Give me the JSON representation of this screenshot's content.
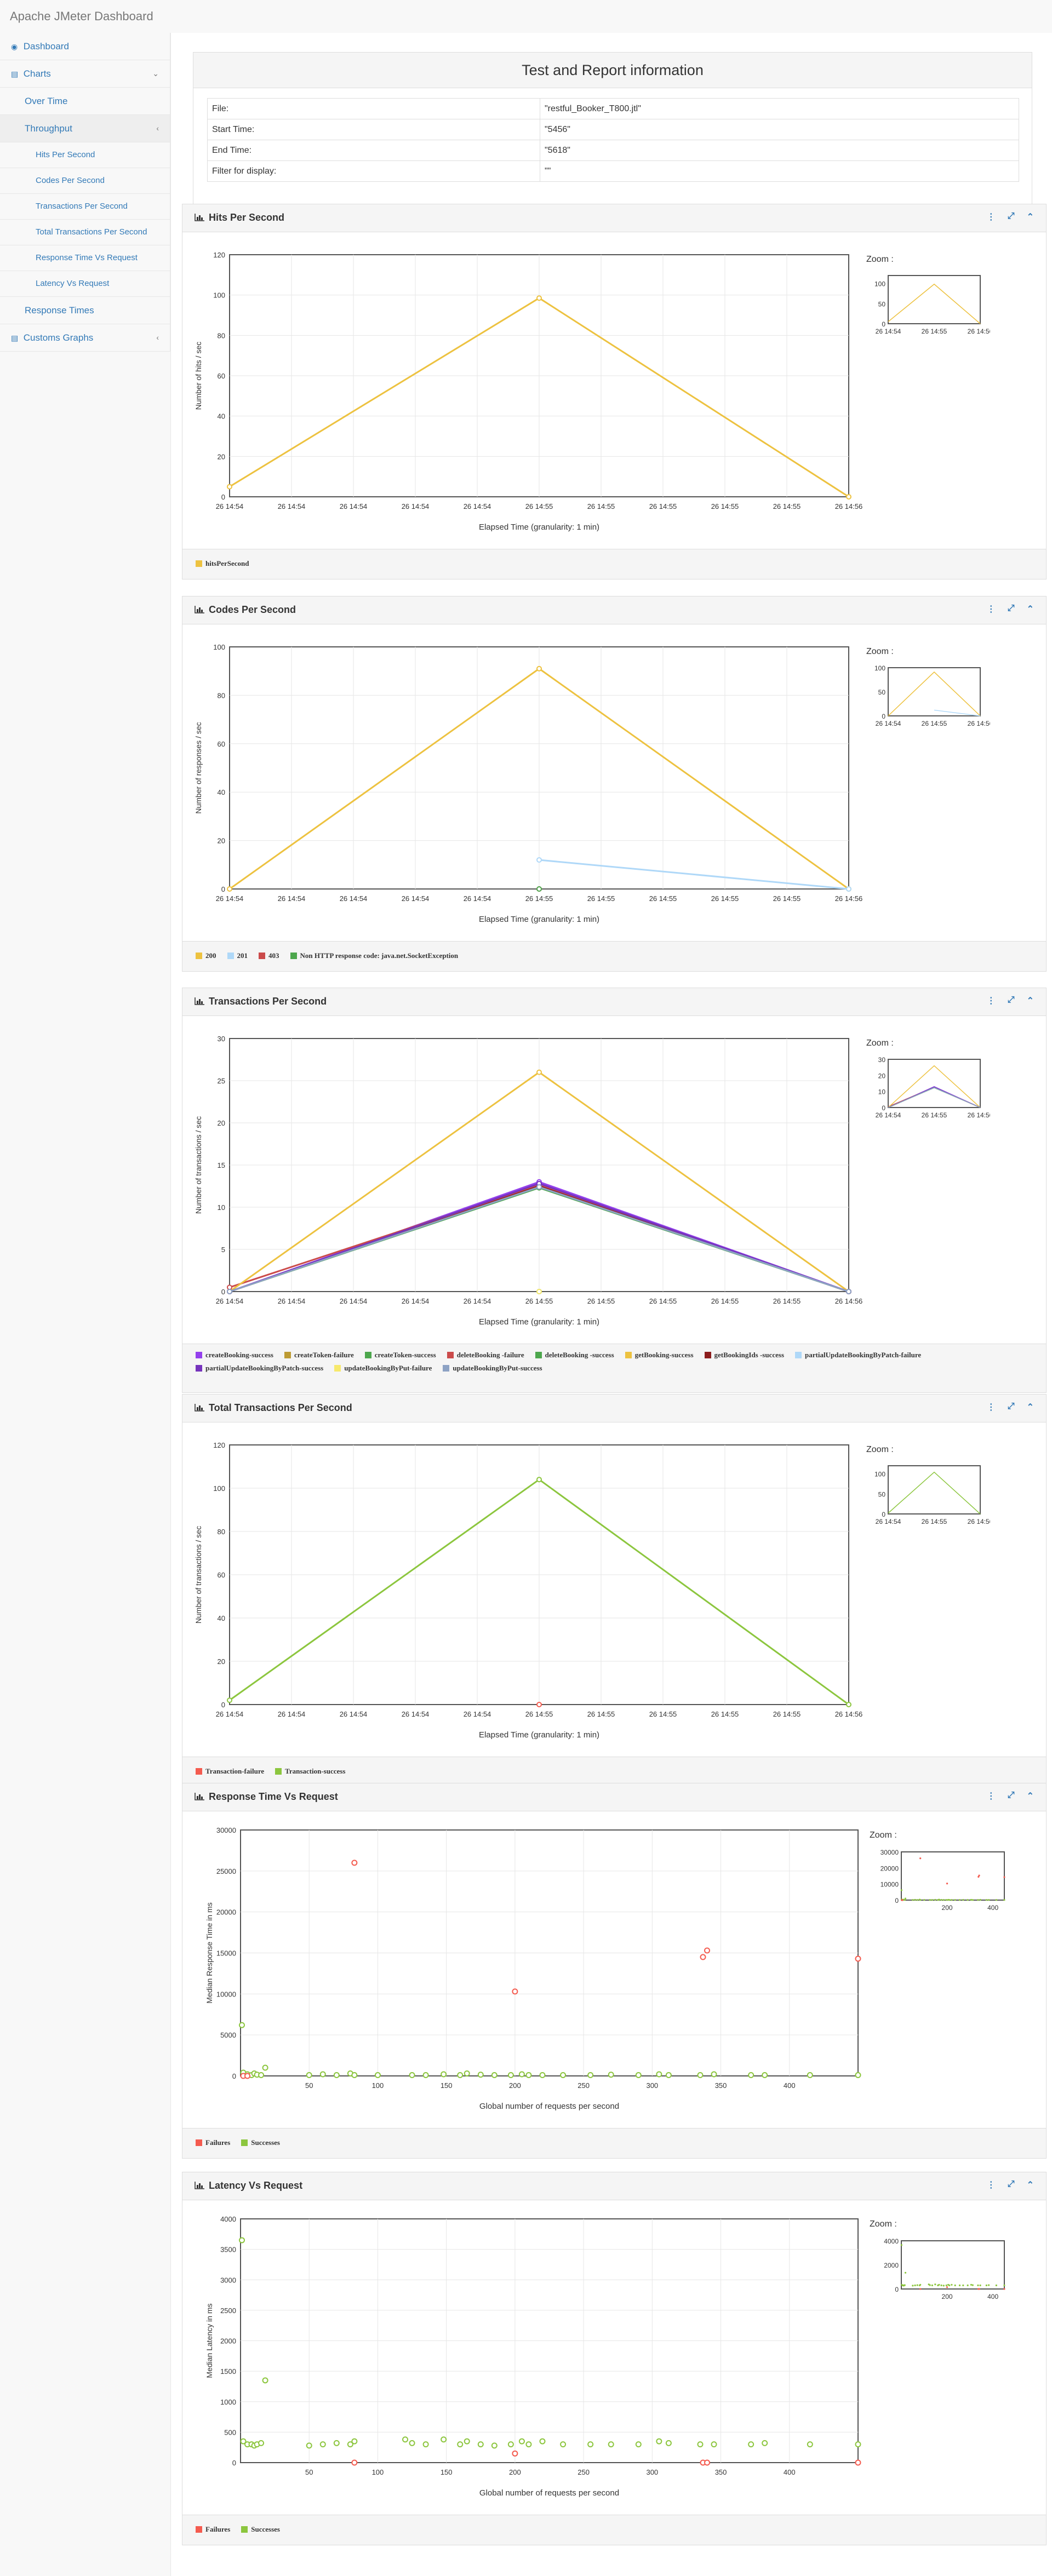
{
  "brand": "Apache JMeter Dashboard",
  "sidebar": {
    "dashboard": "Dashboard",
    "charts": "Charts",
    "over_time": "Over Time",
    "throughput": "Throughput",
    "hits": "Hits Per Second",
    "codes": "Codes Per Second",
    "transactions": "Transactions Per Second",
    "total_transactions": "Total Transactions Per Second",
    "rt_vs_request": "Response Time Vs Request",
    "latency_vs_request": "Latency Vs Request",
    "response_times": "Response Times",
    "customs": "Customs Graphs"
  },
  "info": {
    "title": "Test and Report information",
    "rows": [
      {
        "label": "File:",
        "value": "\"restful_Booker_T800.jtl\""
      },
      {
        "label": "Start Time:",
        "value": "\"5456\""
      },
      {
        "label": "End Time:",
        "value": "\"5618\""
      },
      {
        "label": "Filter for display:",
        "value": "\"\""
      }
    ]
  },
  "common": {
    "zoom": "Zoom :",
    "time_xlabel": "Elapsed Time (granularity: 1 min)",
    "req_xlabel": "Global number of requests per second",
    "time_ticks": [
      "26 14:54",
      "26 14:54",
      "26 14:54",
      "26 14:54",
      "26 14:54",
      "26 14:55",
      "26 14:55",
      "26 14:55",
      "26 14:55",
      "26 14:55",
      "26 14:56"
    ],
    "zoom_time_ticks": [
      "26 14:54",
      "26 14:55",
      "26 14:56"
    ],
    "colors": {
      "yellow": "#edc240",
      "lightblue": "#afd8f8",
      "red": "#cb4b4b",
      "green": "#4da74d",
      "purple": "#9440ed",
      "olive": "#bd9b33",
      "darkred": "#8c1d1d",
      "lime": "#8cc63e",
      "salmon": "#f45b4f"
    }
  },
  "panels": {
    "hits": {
      "title": "Hits Per Second",
      "ylabel": "Number of hits / sec",
      "legend": [
        "hitsPerSecond"
      ]
    },
    "codes": {
      "title": "Codes Per Second",
      "ylabel": "Number of responses / sec",
      "legend": [
        "200",
        "201",
        "403",
        "Non HTTP response code: java.net.SocketException"
      ]
    },
    "transactions": {
      "title": "Transactions Per Second",
      "ylabel": "Number of transactions / sec",
      "legend": [
        "createBooking-success",
        "createToken-failure",
        "createToken-success",
        "deleteBooking -failure",
        "deleteBooking -success",
        "getBooking-success",
        "getBookingIds -success",
        "partialUpdateBookingByPatch-failure",
        "partialUpdateBookingByPatch-success",
        "updateBookingByPut-failure",
        "updateBookingByPut-success"
      ]
    },
    "total": {
      "title": "Total Transactions Per Second",
      "ylabel": "Number of transactions / sec",
      "legend": [
        "Transaction-failure",
        "Transaction-success"
      ]
    },
    "rt": {
      "title": "Response Time Vs Request",
      "ylabel": "Median Response Time in ms",
      "legend": [
        "Failures",
        "Successes"
      ]
    },
    "lat": {
      "title": "Latency Vs Request",
      "ylabel": "Median Latency in ms",
      "legend": [
        "Failures",
        "Successes"
      ]
    }
  },
  "chart_data": [
    {
      "id": "hits",
      "type": "line",
      "title": "Hits Per Second",
      "xlabel": "Elapsed Time (granularity: 1 min)",
      "ylabel": "Number of hits / sec",
      "x": [
        "26 14:54",
        "26 14:55",
        "26 14:56"
      ],
      "ylim": [
        0,
        120
      ],
      "yticks": [
        0,
        20,
        40,
        60,
        80,
        100,
        120
      ],
      "series": [
        {
          "name": "hitsPerSecond",
          "color": "#edc240",
          "values": [
            5,
            98.5,
            0
          ]
        }
      ]
    },
    {
      "id": "codes",
      "type": "line",
      "title": "Codes Per Second",
      "xlabel": "Elapsed Time (granularity: 1 min)",
      "ylabel": "Number of responses / sec",
      "x": [
        "26 14:54",
        "26 14:55",
        "26 14:56"
      ],
      "ylim": [
        0,
        100
      ],
      "yticks": [
        0,
        20,
        40,
        60,
        80,
        100
      ],
      "series": [
        {
          "name": "200",
          "color": "#edc240",
          "values": [
            0,
            91,
            0
          ]
        },
        {
          "name": "201",
          "color": "#afd8f8",
          "values": [
            null,
            12,
            0
          ]
        },
        {
          "name": "403",
          "color": "#cb4b4b",
          "values": [
            null,
            0,
            null
          ]
        },
        {
          "name": "Non HTTP response code: java.net.SocketException",
          "color": "#4da74d",
          "values": [
            null,
            0,
            null
          ]
        }
      ]
    },
    {
      "id": "transactions",
      "type": "line",
      "title": "Transactions Per Second",
      "xlabel": "Elapsed Time (granularity: 1 min)",
      "ylabel": "Number of transactions / sec",
      "x": [
        "26 14:54",
        "26 14:55",
        "26 14:56"
      ],
      "ylim": [
        0,
        30
      ],
      "yticks": [
        0,
        5,
        10,
        15,
        20,
        25,
        30
      ],
      "series": [
        {
          "name": "createBooking-success",
          "color": "#9440ed",
          "values": [
            0,
            13,
            0
          ]
        },
        {
          "name": "createToken-failure",
          "color": "#bd9b33",
          "values": [
            null,
            0,
            null
          ]
        },
        {
          "name": "createToken-success",
          "color": "#4da74d",
          "values": [
            0,
            12.3,
            0
          ]
        },
        {
          "name": "deleteBooking -failure",
          "color": "#cb4b4b",
          "values": [
            0.5,
            12.6,
            0
          ]
        },
        {
          "name": "deleteBooking -success",
          "color": "#4da74d",
          "values": [
            null,
            0,
            null
          ]
        },
        {
          "name": "getBooking-success",
          "color": "#edc240",
          "values": [
            0,
            26,
            0
          ]
        },
        {
          "name": "getBookingIds -success",
          "color": "#8c1d1d",
          "values": [
            0,
            12.5,
            0
          ]
        },
        {
          "name": "partialUpdateBookingByPatch-failure",
          "color": "#afd8f8",
          "values": [
            null,
            0,
            null
          ]
        },
        {
          "name": "partialUpdateBookingByPatch-success",
          "color": "#7633bd",
          "values": [
            0,
            12.8,
            0
          ]
        },
        {
          "name": "updateBookingByPut-failure",
          "color": "#f7e96c",
          "values": [
            null,
            0,
            null
          ]
        },
        {
          "name": "updateBookingByPut-success",
          "color": "#8da2c4",
          "values": [
            0,
            12.4,
            0
          ]
        }
      ]
    },
    {
      "id": "total",
      "type": "line",
      "title": "Total Transactions Per Second",
      "xlabel": "Elapsed Time (granularity: 1 min)",
      "ylabel": "Number of transactions / sec",
      "x": [
        "26 14:54",
        "26 14:55",
        "26 14:56"
      ],
      "ylim": [
        0,
        120
      ],
      "yticks": [
        0,
        20,
        40,
        60,
        80,
        100,
        120
      ],
      "series": [
        {
          "name": "Transaction-failure",
          "color": "#f45b4f",
          "values": [
            null,
            0,
            null
          ]
        },
        {
          "name": "Transaction-success",
          "color": "#8cc63e",
          "values": [
            2,
            104,
            0
          ]
        }
      ]
    },
    {
      "id": "rt",
      "type": "scatter",
      "title": "Response Time Vs Request",
      "xlabel": "Global number of requests per second",
      "ylabel": "Median Response Time in ms",
      "xlim": [
        0,
        450
      ],
      "xticks": [
        50,
        100,
        150,
        200,
        250,
        300,
        350,
        400
      ],
      "ylim": [
        0,
        30000
      ],
      "yticks": [
        0,
        5000,
        10000,
        15000,
        20000,
        25000,
        30000
      ],
      "zoom_xticks": [
        200,
        400
      ],
      "zoom_yticks": [
        0,
        10000,
        20000,
        30000
      ],
      "series": [
        {
          "name": "Failures",
          "color": "#f45b4f",
          "points": [
            [
              83,
              26000
            ],
            [
              200,
              10300
            ],
            [
              337,
              14500
            ],
            [
              340,
              15300
            ],
            [
              450,
              14300
            ],
            [
              2,
              0
            ],
            [
              5,
              0
            ]
          ]
        },
        {
          "name": "Successes",
          "color": "#8cc63e",
          "points": [
            [
              1,
              6200
            ],
            [
              2,
              400
            ],
            [
              5,
              200
            ],
            [
              8,
              100
            ],
            [
              10,
              300
            ],
            [
              12,
              150
            ],
            [
              15,
              100
            ],
            [
              18,
              1000
            ],
            [
              50,
              100
            ],
            [
              60,
              200
            ],
            [
              70,
              100
            ],
            [
              80,
              300
            ],
            [
              83,
              100
            ],
            [
              100,
              100
            ],
            [
              125,
              100
            ],
            [
              135,
              100
            ],
            [
              148,
              200
            ],
            [
              160,
              100
            ],
            [
              165,
              300
            ],
            [
              175,
              150
            ],
            [
              185,
              100
            ],
            [
              197,
              100
            ],
            [
              205,
              200
            ],
            [
              210,
              100
            ],
            [
              220,
              100
            ],
            [
              235,
              100
            ],
            [
              255,
              100
            ],
            [
              270,
              150
            ],
            [
              290,
              100
            ],
            [
              305,
              200
            ],
            [
              312,
              100
            ],
            [
              335,
              100
            ],
            [
              345,
              200
            ],
            [
              372,
              100
            ],
            [
              382,
              100
            ],
            [
              415,
              100
            ],
            [
              450,
              100
            ]
          ]
        }
      ]
    },
    {
      "id": "lat",
      "type": "scatter",
      "title": "Latency Vs Request",
      "xlabel": "Global number of requests per second",
      "ylabel": "Median Latency in ms",
      "xlim": [
        0,
        450
      ],
      "xticks": [
        50,
        100,
        150,
        200,
        250,
        300,
        350,
        400
      ],
      "ylim": [
        0,
        4000
      ],
      "yticks": [
        0,
        500,
        1000,
        1500,
        2000,
        2500,
        3000,
        3500,
        4000
      ],
      "zoom_xticks": [
        200,
        400
      ],
      "zoom_yticks": [
        0,
        2000,
        4000
      ],
      "series": [
        {
          "name": "Failures",
          "color": "#f45b4f",
          "points": [
            [
              83,
              0
            ],
            [
              200,
              150
            ],
            [
              337,
              0
            ],
            [
              340,
              0
            ],
            [
              450,
              0
            ]
          ]
        },
        {
          "name": "Successes",
          "color": "#8cc63e",
          "points": [
            [
              1,
              3650
            ],
            [
              2,
              350
            ],
            [
              5,
              300
            ],
            [
              8,
              300
            ],
            [
              10,
              280
            ],
            [
              12,
              300
            ],
            [
              15,
              320
            ],
            [
              18,
              1350
            ],
            [
              50,
              280
            ],
            [
              60,
              300
            ],
            [
              70,
              320
            ],
            [
              80,
              300
            ],
            [
              83,
              350
            ],
            [
              120,
              380
            ],
            [
              125,
              320
            ],
            [
              135,
              300
            ],
            [
              148,
              380
            ],
            [
              160,
              300
            ],
            [
              165,
              350
            ],
            [
              175,
              300
            ],
            [
              185,
              280
            ],
            [
              197,
              300
            ],
            [
              205,
              350
            ],
            [
              210,
              300
            ],
            [
              220,
              350
            ],
            [
              235,
              300
            ],
            [
              255,
              300
            ],
            [
              270,
              300
            ],
            [
              290,
              300
            ],
            [
              305,
              350
            ],
            [
              312,
              320
            ],
            [
              335,
              300
            ],
            [
              345,
              300
            ],
            [
              372,
              300
            ],
            [
              382,
              320
            ],
            [
              415,
              300
            ],
            [
              450,
              300
            ]
          ]
        }
      ]
    }
  ]
}
